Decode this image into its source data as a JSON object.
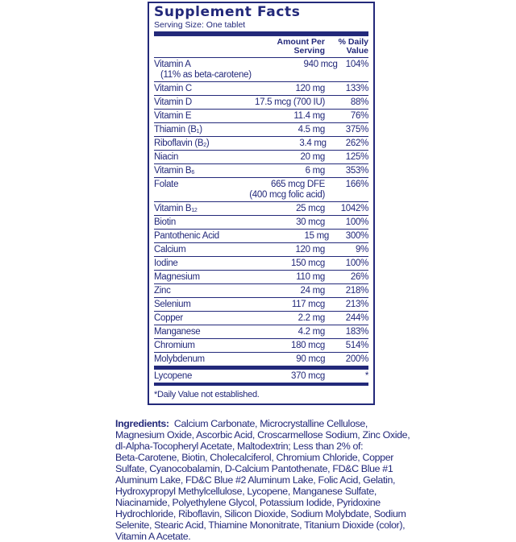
{
  "panel": {
    "title": "Supplement Facts",
    "serving": "Serving Size: One tablet",
    "col_amount": [
      "Amount Per",
      "Serving"
    ],
    "col_dv": [
      "% Daily",
      "Value"
    ],
    "rows": [
      {
        "name": "Vitamin A",
        "sub": "",
        "name2": "(11% as beta-carotene)",
        "amount": "940 mcg",
        "amount2": "",
        "dv": "104%"
      },
      {
        "name": "Vitamin C",
        "sub": "",
        "amount": "120 mg",
        "dv": "133%"
      },
      {
        "name": "Vitamin D",
        "sub": "",
        "amount": "17.5 mcg (700 IU)",
        "dv": "88%"
      },
      {
        "name": "Vitamin E",
        "sub": "",
        "amount": "11.4 mg",
        "dv": "76%"
      },
      {
        "name": "Thiamin (B",
        "sub": "1",
        "tail": ")",
        "amount": "4.5 mg",
        "dv": "375%"
      },
      {
        "name": "Riboflavin (B",
        "sub": "2",
        "tail": ")",
        "amount": "3.4 mg",
        "dv": "262%"
      },
      {
        "name": "Niacin",
        "sub": "",
        "amount": "20 mg",
        "dv": "125%"
      },
      {
        "name": "Vitamin B",
        "sub": "6",
        "amount": "6 mg",
        "dv": "353%"
      },
      {
        "name": "Folate",
        "sub": "",
        "amount": "665 mcg DFE",
        "amount2": "(400 mcg folic acid)",
        "dv": "166%"
      },
      {
        "name": "Vitamin B",
        "sub": "12",
        "amount": "25 mcg",
        "dv": "1042%"
      },
      {
        "name": "Biotin",
        "sub": "",
        "amount": "30 mcg",
        "dv": "100%"
      },
      {
        "name": "Pantothenic Acid",
        "sub": "",
        "amount": "15 mg",
        "dv": "300%"
      },
      {
        "name": "Calcium",
        "sub": "",
        "amount": "120 mg",
        "dv": "9%"
      },
      {
        "name": "Iodine",
        "sub": "",
        "amount": "150 mcg",
        "dv": "100%"
      },
      {
        "name": "Magnesium",
        "sub": "",
        "amount": "110 mg",
        "dv": "26%"
      },
      {
        "name": "Zinc",
        "sub": "",
        "amount": "24 mg",
        "dv": "218%"
      },
      {
        "name": "Selenium",
        "sub": "",
        "amount": "117 mcg",
        "dv": "213%"
      },
      {
        "name": "Copper",
        "sub": "",
        "amount": "2.2 mg",
        "dv": "244%"
      },
      {
        "name": "Manganese",
        "sub": "",
        "amount": "4.2 mg",
        "dv": "183%"
      },
      {
        "name": "Chromium",
        "sub": "",
        "amount": "180 mcg",
        "dv": "514%"
      },
      {
        "name": "Molybdenum",
        "sub": "",
        "amount": "90 mcg",
        "dv": "200%"
      }
    ],
    "extra": {
      "name": "Lycopene",
      "amount": "370 mcg",
      "dv": "*"
    },
    "footnote": "*Daily Value not established."
  },
  "ingredients": {
    "label": "Ingredients:",
    "lines": [
      "Calcium Carbonate, Microcrystalline Cellulose,",
      "Magnesium Oxide, Ascorbic Acid, Croscarmellose Sodium, Zinc Oxide,",
      "dl-Alpha-Tocopheryl Acetate, Maltodextrin; Less than 2% of:",
      "Beta-Carotene, Biotin, Cholecalciferol, Chromium Chloride, Copper",
      "Sulfate, Cyanocobalamin, D-Calcium Pantothenate, FD&C Blue #1",
      "Aluminum Lake, FD&C Blue #2 Aluminum Lake, Folic Acid, Gelatin,",
      "Hydroxypropyl Methylcellulose, Lycopene, Manganese Sulfate,",
      "Niacinamide, Polyethylene Glycol, Potassium Iodide, Pyridoxine",
      "Hydrochloride, Riboflavin, Silicon Dioxide, Sodium Molybdate, Sodium",
      "Selenite, Stearic Acid, Thiamine Mononitrate, Titanium Dioxide (color),",
      "Vitamin A Acetate."
    ]
  },
  "colors": {
    "ink": "#23297a",
    "background": "#ffffff"
  }
}
